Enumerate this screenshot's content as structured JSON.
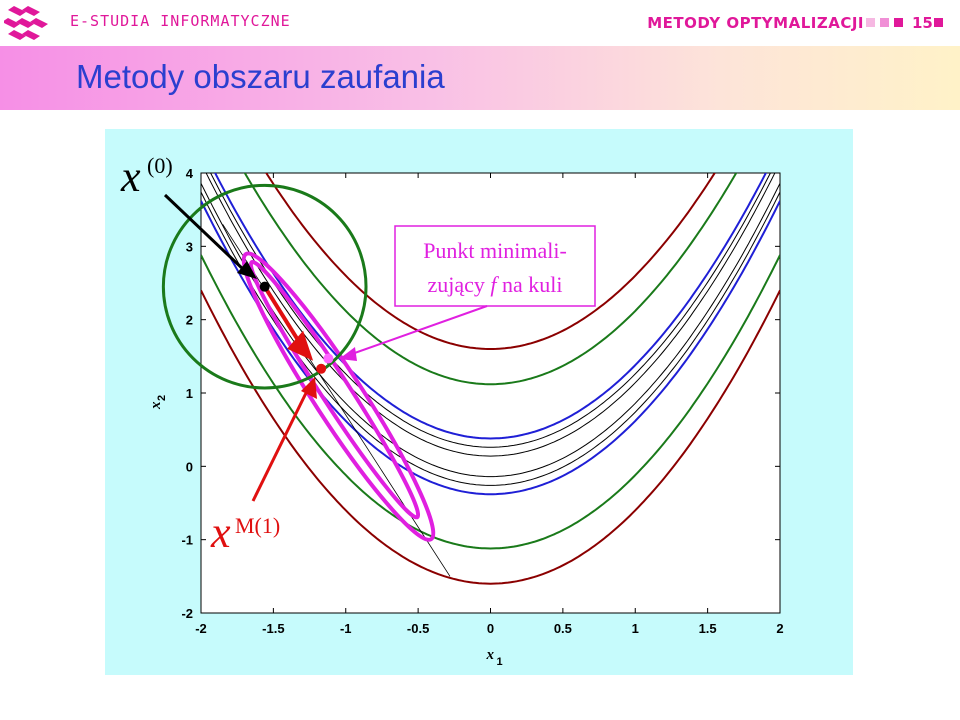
{
  "header": {
    "brand": "E-STUDIA INFORMATYCZNE",
    "course": "METODY OPTYMALIZACJI",
    "page_number": "15",
    "accent": "#e0189a"
  },
  "slide": {
    "title": "Metody obszaru zaufania"
  },
  "chart_data": {
    "type": "contour",
    "xlabel": "x",
    "xlabel_sub": "1",
    "ylabel": "x",
    "ylabel_sub": "2",
    "xlim": [
      -2,
      2
    ],
    "ylim": [
      -2,
      4
    ],
    "xticks": [
      "-2",
      "-1.5",
      "-1",
      "-0.5",
      "0",
      "0.5",
      "1",
      "1.5",
      "2"
    ],
    "yticks": [
      "-2",
      "-1",
      "0",
      "1",
      "2",
      "3",
      "4"
    ],
    "contours": [
      {
        "color": "#8b0000",
        "offset": 1.6
      },
      {
        "color": "#1a7a1a",
        "offset": 1.12
      },
      {
        "color": "#1f1fd6",
        "offset": 0.38
      },
      {
        "color": "#000000",
        "offset": 0.26
      },
      {
        "color": "#000000",
        "offset": 0.14
      }
    ],
    "trust_region": {
      "center": [
        -1.56,
        2.45
      ],
      "radius": 0.7,
      "color": "#1a7a1a"
    },
    "points": {
      "x0": [
        -1.56,
        2.45
      ],
      "xM1": [
        -1.17,
        1.33
      ],
      "minimizer": [
        -1.12,
        1.47
      ]
    },
    "annotations": {
      "x0_label": "x",
      "x0_sup": "(0)",
      "xm1_label": "x",
      "xm1_sup": "M(1)",
      "box_line1": "Punkt minimali-",
      "box_line2_a": "zujący ",
      "box_line2_f": "f",
      "box_line2_b": " na kuli"
    }
  }
}
